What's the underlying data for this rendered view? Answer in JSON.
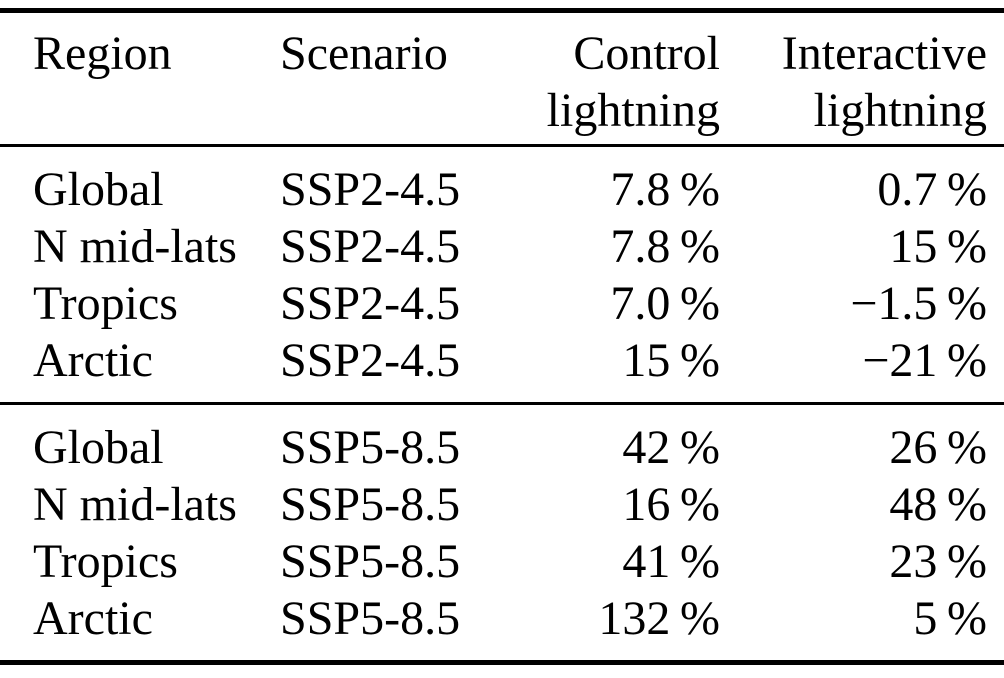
{
  "colors": {
    "background": "#ffffff",
    "text": "#000000",
    "rule": "#000000"
  },
  "table": {
    "headers": {
      "region": "Region",
      "scenario": "Scenario",
      "control": [
        "Control",
        "lightning"
      ],
      "interactive": [
        "Interactive",
        "lightning"
      ]
    },
    "groups": [
      {
        "rows": [
          {
            "region": "Global",
            "scenario": "SSP2-4.5",
            "control": "7.8 %",
            "interactive": "0.7 %"
          },
          {
            "region": "N mid-lats",
            "scenario": "SSP2-4.5",
            "control": "7.8 %",
            "interactive": "15 %"
          },
          {
            "region": "Tropics",
            "scenario": "SSP2-4.5",
            "control": "7.0 %",
            "interactive": "−1.5 %"
          },
          {
            "region": "Arctic",
            "scenario": "SSP2-4.5",
            "control": "15 %",
            "interactive": "−21 %"
          }
        ]
      },
      {
        "rows": [
          {
            "region": "Global",
            "scenario": "SSP5-8.5",
            "control": "42 %",
            "interactive": "26 %"
          },
          {
            "region": "N mid-lats",
            "scenario": "SSP5-8.5",
            "control": "16 %",
            "interactive": "48 %"
          },
          {
            "region": "Tropics",
            "scenario": "SSP5-8.5",
            "control": "41 %",
            "interactive": "23 %"
          },
          {
            "region": "Arctic",
            "scenario": "SSP5-8.5",
            "control": "132 %",
            "interactive": "5 %"
          }
        ]
      }
    ]
  }
}
